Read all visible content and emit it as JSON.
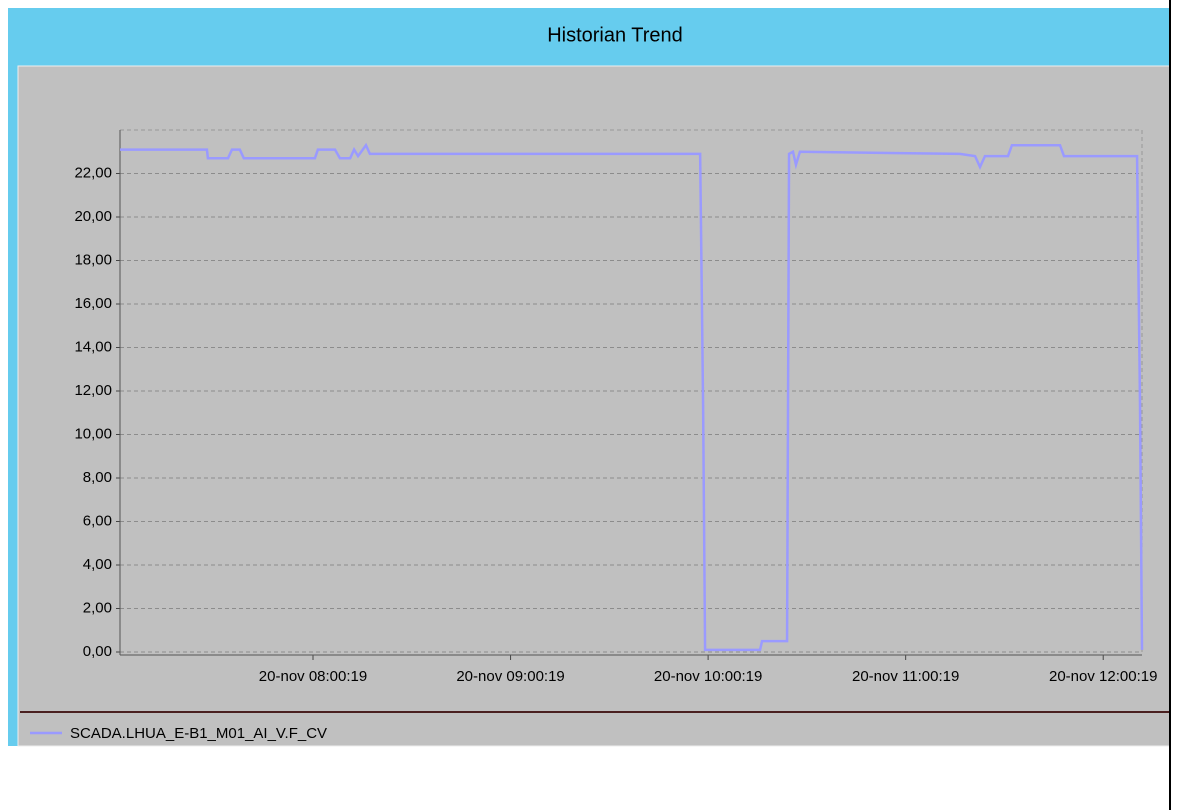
{
  "header": {
    "title": "Historian Trend"
  },
  "chart_data": {
    "type": "line",
    "x": [
      421.7,
      448.1,
      448.4,
      454.5,
      455.7,
      458.1,
      459.3,
      480.9,
      481.8,
      487.0,
      488.5,
      491.6,
      492.8,
      494.0,
      496.4,
      497.6,
      597.9,
      598.8,
      599.4,
      616.1,
      616.7,
      624.3,
      624.9,
      626.1,
      627.0,
      628.2,
      676.8,
      681.4,
      682.9,
      684.4,
      691.4,
      692.6,
      707.2,
      708.4,
      730.6,
      731.5,
      732.1
    ],
    "series": [
      {
        "name": "SCADA.LHUA_E-B1_M01_AI_V.F_CV",
        "color": "#9a9aff",
        "values": [
          23.1,
          23.1,
          22.7,
          22.7,
          23.1,
          23.1,
          22.7,
          22.7,
          23.1,
          23.1,
          22.7,
          22.7,
          23.1,
          22.8,
          23.3,
          22.9,
          22.9,
          11.3,
          0.1,
          0.1,
          0.5,
          0.5,
          22.9,
          23.0,
          22.4,
          23.0,
          22.9,
          22.8,
          22.3,
          22.8,
          22.8,
          23.3,
          23.3,
          22.8,
          22.8,
          11.3,
          0.1
        ]
      }
    ],
    "xlim": [
      421.7,
      732.1
    ],
    "xticks": [
      {
        "value": 480.32,
        "label": "20-nov 08:00:19"
      },
      {
        "value": 540.32,
        "label": "20-nov 09:00:19"
      },
      {
        "value": 600.32,
        "label": "20-nov 10:00:19"
      },
      {
        "value": 660.32,
        "label": "20-nov 11:00:19"
      },
      {
        "value": 720.32,
        "label": "20-nov 12:00:19"
      }
    ],
    "ylim": [
      0,
      24
    ],
    "yticks": [
      {
        "value": 0,
        "label": "0,00"
      },
      {
        "value": 2,
        "label": "2,00"
      },
      {
        "value": 4,
        "label": "4,00"
      },
      {
        "value": 6,
        "label": "6,00"
      },
      {
        "value": 8,
        "label": "8,00"
      },
      {
        "value": 10,
        "label": "10,00"
      },
      {
        "value": 12,
        "label": "12,00"
      },
      {
        "value": 14,
        "label": "14,00"
      },
      {
        "value": 16,
        "label": "16,00"
      },
      {
        "value": 18,
        "label": "18,00"
      },
      {
        "value": 20,
        "label": "20,00"
      },
      {
        "value": 22,
        "label": "22,00"
      }
    ],
    "grid": true
  }
}
